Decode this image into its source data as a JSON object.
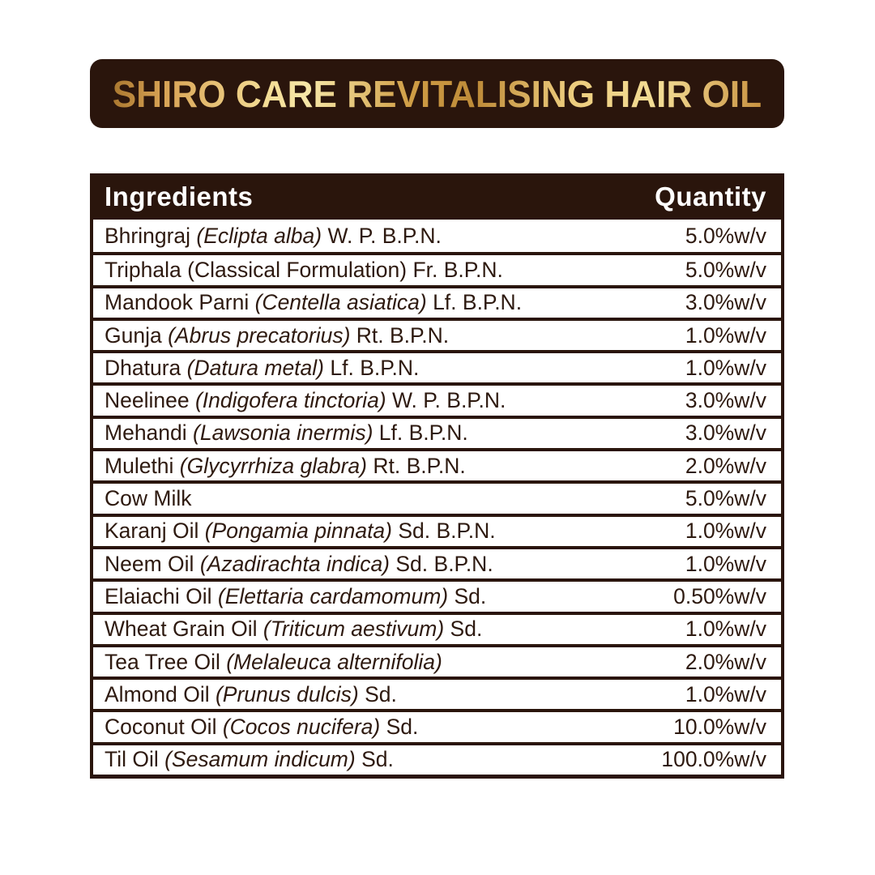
{
  "banner": {
    "title": "SHIRO CARE REVITALISING HAIR OIL"
  },
  "colors": {
    "dark_brown": "#2a150c",
    "gold_dark": "#a9772f",
    "gold_light": "#f7e7a8",
    "row_text": "#2e1a10",
    "header_text": "#ffffff",
    "background": "#ffffff"
  },
  "table": {
    "headers": {
      "ingredients": "Ingredients",
      "quantity": "Quantity"
    },
    "rows": [
      {
        "prefix": "Bhringraj ",
        "latin": "(Eclipta alba)",
        "latin_italic": true,
        "suffix": " W. P. B.P.N.",
        "quantity": "5.0%w/v"
      },
      {
        "prefix": "Triphala ",
        "latin": "(Classical Formulation)",
        "latin_italic": false,
        "suffix": " Fr. B.P.N.",
        "quantity": "5.0%w/v"
      },
      {
        "prefix": "Mandook Parni ",
        "latin": "(Centella asiatica)",
        "latin_italic": true,
        "suffix": " Lf. B.P.N.",
        "quantity": "3.0%w/v"
      },
      {
        "prefix": "Gunja ",
        "latin": "(Abrus precatorius)",
        "latin_italic": true,
        "suffix": " Rt. B.P.N.",
        "quantity": "1.0%w/v"
      },
      {
        "prefix": "Dhatura ",
        "latin": "(Datura metal)",
        "latin_italic": true,
        "suffix": " Lf. B.P.N.",
        "quantity": "1.0%w/v"
      },
      {
        "prefix": "Neelinee ",
        "latin": "(Indigofera tinctoria)",
        "latin_italic": true,
        "suffix": " W. P. B.P.N.",
        "quantity": "3.0%w/v"
      },
      {
        "prefix": "Mehandi ",
        "latin": "(Lawsonia inermis)",
        "latin_italic": true,
        "suffix": " Lf. B.P.N.",
        "quantity": "3.0%w/v"
      },
      {
        "prefix": "Mulethi ",
        "latin": "(Glycyrrhiza glabra)",
        "latin_italic": true,
        "suffix": " Rt. B.P.N.",
        "quantity": "2.0%w/v"
      },
      {
        "prefix": "Cow Milk",
        "latin": "",
        "latin_italic": false,
        "suffix": "",
        "quantity": "5.0%w/v"
      },
      {
        "prefix": "Karanj Oil ",
        "latin": "(Pongamia pinnata)",
        "latin_italic": true,
        "suffix": " Sd. B.P.N.",
        "quantity": "1.0%w/v"
      },
      {
        "prefix": "Neem Oil ",
        "latin": "(Azadirachta indica)",
        "latin_italic": true,
        "suffix": " Sd. B.P.N.",
        "quantity": "1.0%w/v"
      },
      {
        "prefix": "Elaiachi Oil ",
        "latin": "(Elettaria cardamomum)",
        "latin_italic": true,
        "suffix": " Sd.",
        "quantity": "0.50%w/v"
      },
      {
        "prefix": "Wheat Grain Oil ",
        "latin": "(Triticum aestivum)",
        "latin_italic": true,
        "suffix": " Sd.",
        "quantity": "1.0%w/v"
      },
      {
        "prefix": "Tea Tree Oil ",
        "latin": "(Melaleuca alternifolia)",
        "latin_italic": true,
        "suffix": "",
        "quantity": "2.0%w/v"
      },
      {
        "prefix": "Almond Oil ",
        "latin": "(Prunus dulcis)",
        "latin_italic": true,
        "suffix": " Sd.",
        "quantity": "1.0%w/v"
      },
      {
        "prefix": "Coconut Oil ",
        "latin": "(Cocos nucifera)",
        "latin_italic": true,
        "suffix": " Sd.",
        "quantity": "10.0%w/v"
      },
      {
        "prefix": "Til Oil ",
        "latin": "(Sesamum indicum)",
        "latin_italic": true,
        "suffix": " Sd.",
        "quantity": "100.0%w/v"
      }
    ]
  }
}
